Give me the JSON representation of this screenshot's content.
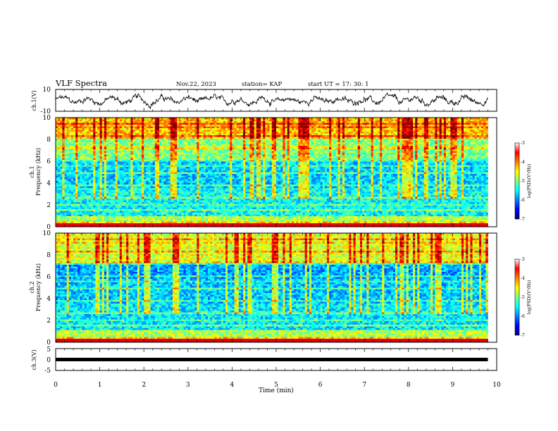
{
  "header": {
    "title": "VLF Spectra",
    "date": "Nov.22, 2023",
    "station": "station= KAP",
    "start": "start  UT =   17: 30: 1"
  },
  "chart_data": [
    {
      "type": "line",
      "panel": "ch1-waveform",
      "ylabel": "ch.1(V)",
      "ylim": [
        -10,
        10
      ],
      "yticks": [
        "10",
        "-10"
      ],
      "xlim": [
        0,
        10
      ],
      "x_unit": "min",
      "series": [
        {
          "values_description_range": [
            -6,
            6
          ]
        }
      ]
    },
    {
      "type": "heatmap",
      "panel": "ch1-spectrogram",
      "ylabel": "ch.1\nFrequency (kHz)",
      "ylabel_line1": "ch.1",
      "ylabel_line2": "Frequency (kHz)",
      "ylim": [
        0,
        10
      ],
      "yticks": [
        "0",
        "2",
        "4",
        "6",
        "8",
        "10"
      ],
      "xlim": [
        0,
        10
      ],
      "data_end_min": 9.8,
      "colorbar": {
        "label": "log(PSD)(V²/Hz)",
        "range": [
          -7,
          -3
        ],
        "ticks": [
          "-3",
          "-4",
          "-5",
          "-6",
          "-7"
        ],
        "colormap": "jet"
      }
    },
    {
      "type": "heatmap",
      "panel": "ch2-spectrogram",
      "ylabel": "ch.2\nFrequency (kHz)",
      "ylabel_line1": "ch.2",
      "ylabel_line2": "Frequency (kHz)",
      "ylim": [
        0,
        10
      ],
      "yticks": [
        "0",
        "2",
        "4",
        "6",
        "8",
        "10"
      ],
      "xlim": [
        0,
        10
      ],
      "data_end_min": 9.8,
      "colorbar": {
        "label": "log(PSD)(V²/Hz)",
        "range": [
          -7,
          -3
        ],
        "ticks": [
          "-3",
          "-4",
          "-5",
          "-6",
          "-7"
        ],
        "colormap": "jet"
      }
    },
    {
      "type": "line",
      "panel": "ch3-waveform",
      "ylabel": "ch.3(V)",
      "ylim": [
        -5,
        5
      ],
      "yticks": [
        "5",
        "0",
        "-5"
      ],
      "xlim": [
        0,
        10
      ],
      "xlabel": "Time  (min)",
      "xticks": [
        "0",
        "1",
        "2",
        "3",
        "4",
        "5",
        "6",
        "7",
        "8",
        "9",
        "10"
      ],
      "series": [
        {
          "values": [
            -0.5,
            -0.5
          ],
          "x": [
            0,
            9.8
          ]
        }
      ]
    }
  ]
}
